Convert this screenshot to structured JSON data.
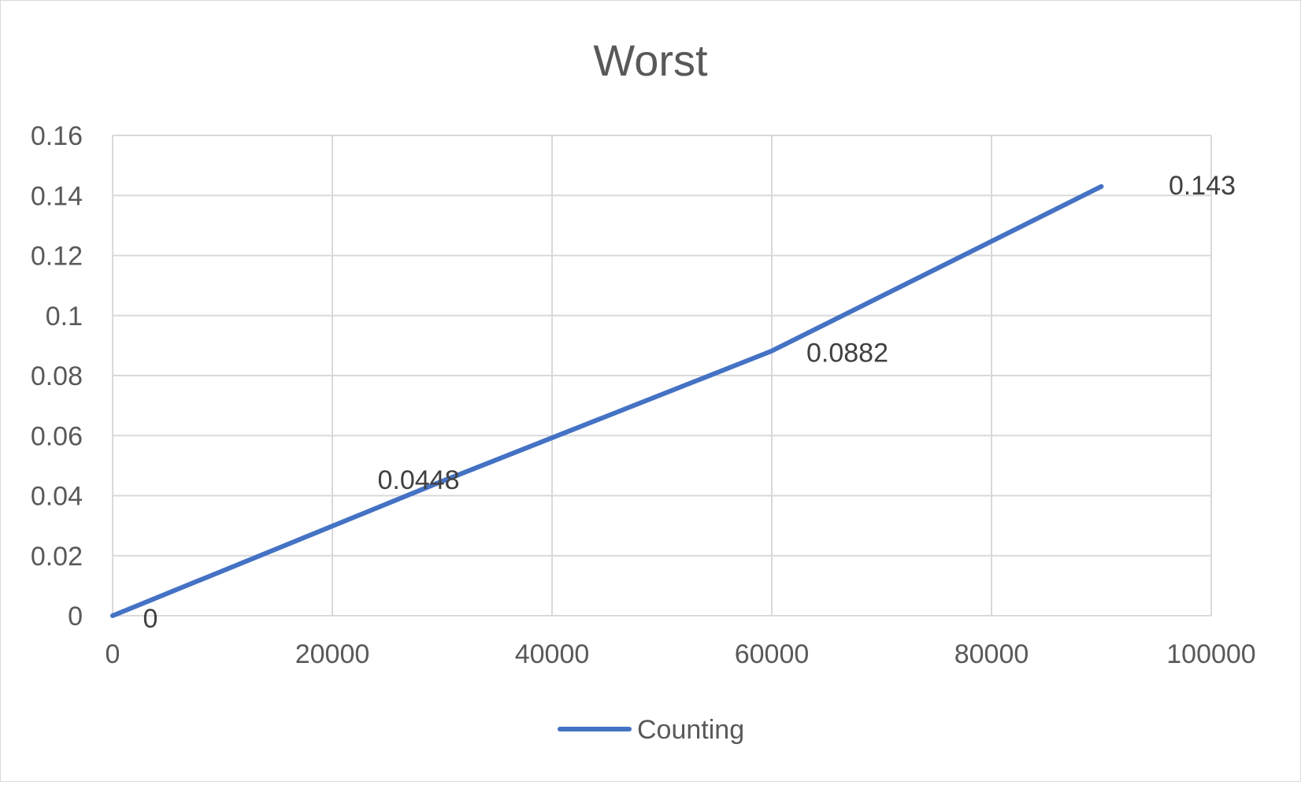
{
  "chart_data": {
    "type": "line",
    "title": "Worst",
    "xlabel": "",
    "ylabel": "",
    "xlim": [
      0,
      100000
    ],
    "ylim": [
      0,
      0.16
    ],
    "xticks": [
      0,
      20000,
      40000,
      60000,
      80000,
      100000
    ],
    "yticks": [
      0,
      0.02,
      0.04,
      0.06,
      0.08,
      0.1,
      0.12,
      0.14,
      0.16
    ],
    "xtick_labels": [
      "0",
      "20000",
      "40000",
      "60000",
      "80000",
      "100000"
    ],
    "ytick_labels": [
      "0",
      "0.02",
      "0.04",
      "0.06",
      "0.08",
      "0.1",
      "0.12",
      "0.14",
      "0.16"
    ],
    "grid": true,
    "legend_position": "bottom",
    "series": [
      {
        "name": "Counting",
        "color": "#4472C4",
        "x": [
          0,
          30000,
          60000,
          90000
        ],
        "y": [
          0,
          0.0448,
          0.0882,
          0.143
        ],
        "labels": [
          "0",
          "0.0448",
          "0.0882",
          "0.143"
        ]
      }
    ]
  }
}
